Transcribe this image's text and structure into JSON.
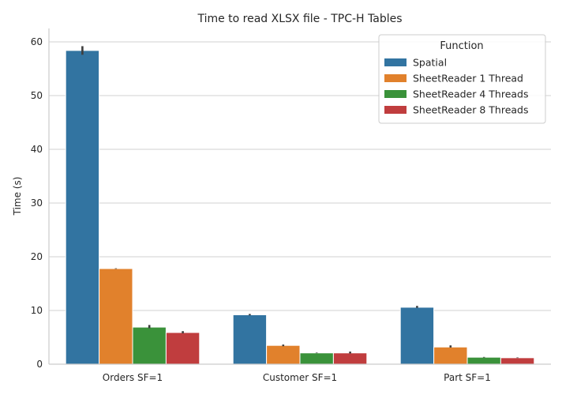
{
  "chart_data": {
    "type": "bar",
    "title": "Time to read XLSX file - TPC-H Tables",
    "xlabel": "",
    "ylabel": "Time (s)",
    "ylim": [
      0,
      62.5
    ],
    "yticks": [
      0,
      10,
      20,
      30,
      40,
      50,
      60
    ],
    "grid": "horizontal",
    "categories": [
      "Orders SF=1",
      "Customer SF=1",
      "Part SF=1"
    ],
    "legend": {
      "title": "Function",
      "position": "top-right"
    },
    "series": [
      {
        "name": "Spatial",
        "color": "#3274a1",
        "values": [
          58.4,
          9.2,
          10.6
        ],
        "err_low": [
          57.6,
          9.1,
          10.5
        ],
        "err_high": [
          59.2,
          9.35,
          10.85
        ]
      },
      {
        "name": "SheetReader 1 Thread",
        "color": "#e1812c",
        "values": [
          17.8,
          3.5,
          3.2
        ],
        "err_low": [
          17.75,
          3.35,
          3.1
        ],
        "err_high": [
          17.85,
          3.65,
          3.5
        ]
      },
      {
        "name": "SheetReader 4 Threads",
        "color": "#3a923a",
        "values": [
          6.9,
          2.1,
          1.3
        ],
        "err_low": [
          6.7,
          2.05,
          1.25
        ],
        "err_high": [
          7.3,
          2.15,
          1.35
        ]
      },
      {
        "name": "SheetReader 8 Threads",
        "color": "#c03d3e",
        "values": [
          5.9,
          2.1,
          1.2
        ],
        "err_low": [
          5.75,
          2.0,
          1.15
        ],
        "err_high": [
          6.15,
          2.35,
          1.25
        ]
      }
    ]
  }
}
